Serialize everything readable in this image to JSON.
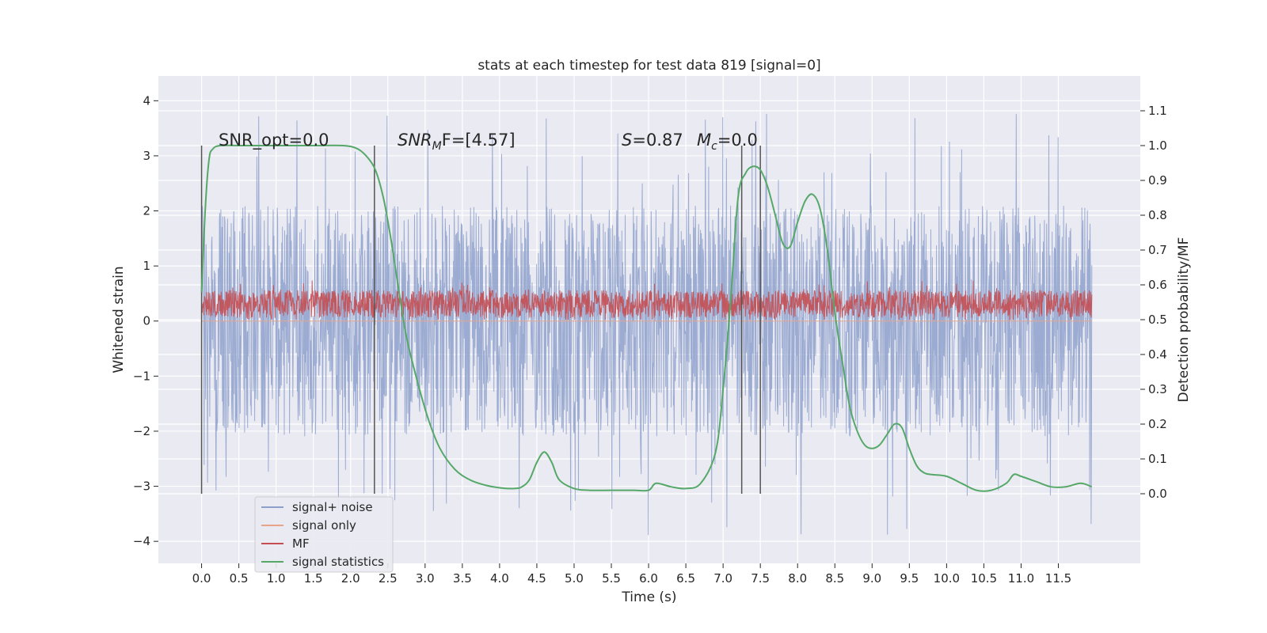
{
  "chart_data": {
    "type": "line",
    "title": "stats at each timestep for test data 819 [signal=0]",
    "xlabel": "Time (s)",
    "ylabel_left": "Whitened strain",
    "ylabel_right": "Detection probability/MF",
    "xlim": [
      -0.58,
      12.6
    ],
    "ylim_left": [
      -4.4,
      4.45
    ],
    "ylim_right": [
      -0.2,
      1.2
    ],
    "x_ticks": [
      "0.0",
      "0.5",
      "1.0",
      "1.5",
      "2.0",
      "2.5",
      "3.0",
      "3.5",
      "4.0",
      "4.5",
      "5.0",
      "5.5",
      "6.0",
      "6.5",
      "7.0",
      "7.5",
      "8.0",
      "8.5",
      "9.0",
      "9.5",
      "10.0",
      "10.5",
      "11.0",
      "11.5"
    ],
    "y_ticks_left": [
      "−4",
      "−3",
      "−2",
      "−1",
      "0",
      "1",
      "2",
      "3",
      "4"
    ],
    "y_ticks_right": [
      "0.0",
      "0.1",
      "0.2",
      "0.3",
      "0.4",
      "0.5",
      "0.6",
      "0.7",
      "0.8",
      "0.9",
      "1.0",
      "1.1"
    ],
    "grid": true,
    "legend_position": "lower-left",
    "annotations": {
      "snr_opt": "SNR_opt=0.0",
      "snr_mf_main": "SNR",
      "snr_mf_sub": "M",
      "snr_mf_rest": "F=[4.57]",
      "s_main": "S",
      "s_rest": "=0.87",
      "mc_main": "M",
      "mc_sub": "c",
      "mc_rest": "=0.0"
    },
    "vertical_lines_x": [
      0.0,
      2.32,
      7.25,
      7.5
    ],
    "series": [
      {
        "name": "signal+ noise",
        "axis": "left",
        "color": "#8da0cb",
        "x_range": [
          0.0,
          11.95
        ],
        "typical_range": [
          -1.8,
          1.95
        ],
        "extreme_range": [
          -3.9,
          4.1
        ]
      },
      {
        "name": "signal only",
        "axis": "left",
        "color": "#e8a48a",
        "values": "flat at 0"
      },
      {
        "name": "MF",
        "axis": "right",
        "color": "#c44e52",
        "x_range": [
          0.0,
          11.95
        ],
        "value_range": [
          0.5,
          0.62
        ]
      },
      {
        "name": "signal statistics",
        "axis": "right",
        "color": "#55a868",
        "x": [
          0.0,
          0.05,
          0.1,
          0.15,
          0.25,
          0.5,
          1.0,
          1.5,
          1.9,
          2.1,
          2.25,
          2.35,
          2.45,
          2.55,
          2.65,
          2.75,
          2.9,
          3.05,
          3.2,
          3.4,
          3.6,
          3.8,
          4.0,
          4.2,
          4.3,
          4.4,
          4.5,
          4.6,
          4.7,
          4.8,
          5.0,
          5.2,
          5.5,
          5.8,
          6.0,
          6.1,
          6.3,
          6.5,
          6.7,
          6.9,
          7.0,
          7.1,
          7.2,
          7.3,
          7.4,
          7.5,
          7.6,
          7.7,
          7.8,
          7.9,
          8.0,
          8.1,
          8.2,
          8.3,
          8.4,
          8.5,
          8.6,
          8.7,
          8.8,
          8.9,
          9.0,
          9.1,
          9.2,
          9.3,
          9.4,
          9.5,
          9.6,
          9.7,
          9.8,
          10.0,
          10.2,
          10.4,
          10.6,
          10.8,
          10.9,
          11.0,
          11.2,
          11.4,
          11.6,
          11.8,
          11.95
        ],
        "values": [
          0.58,
          0.82,
          0.96,
          0.99,
          1.0,
          1.0,
          1.0,
          1.0,
          1.0,
          0.99,
          0.96,
          0.92,
          0.84,
          0.72,
          0.58,
          0.45,
          0.32,
          0.21,
          0.13,
          0.07,
          0.04,
          0.025,
          0.017,
          0.015,
          0.02,
          0.04,
          0.09,
          0.12,
          0.09,
          0.04,
          0.015,
          0.01,
          0.01,
          0.01,
          0.01,
          0.03,
          0.02,
          0.015,
          0.03,
          0.12,
          0.3,
          0.55,
          0.85,
          0.92,
          0.94,
          0.93,
          0.88,
          0.8,
          0.72,
          0.71,
          0.78,
          0.84,
          0.86,
          0.82,
          0.7,
          0.52,
          0.38,
          0.25,
          0.18,
          0.14,
          0.13,
          0.14,
          0.17,
          0.2,
          0.19,
          0.13,
          0.08,
          0.06,
          0.055,
          0.05,
          0.03,
          0.01,
          0.01,
          0.03,
          0.055,
          0.05,
          0.035,
          0.02,
          0.02,
          0.03,
          0.02
        ]
      }
    ]
  }
}
